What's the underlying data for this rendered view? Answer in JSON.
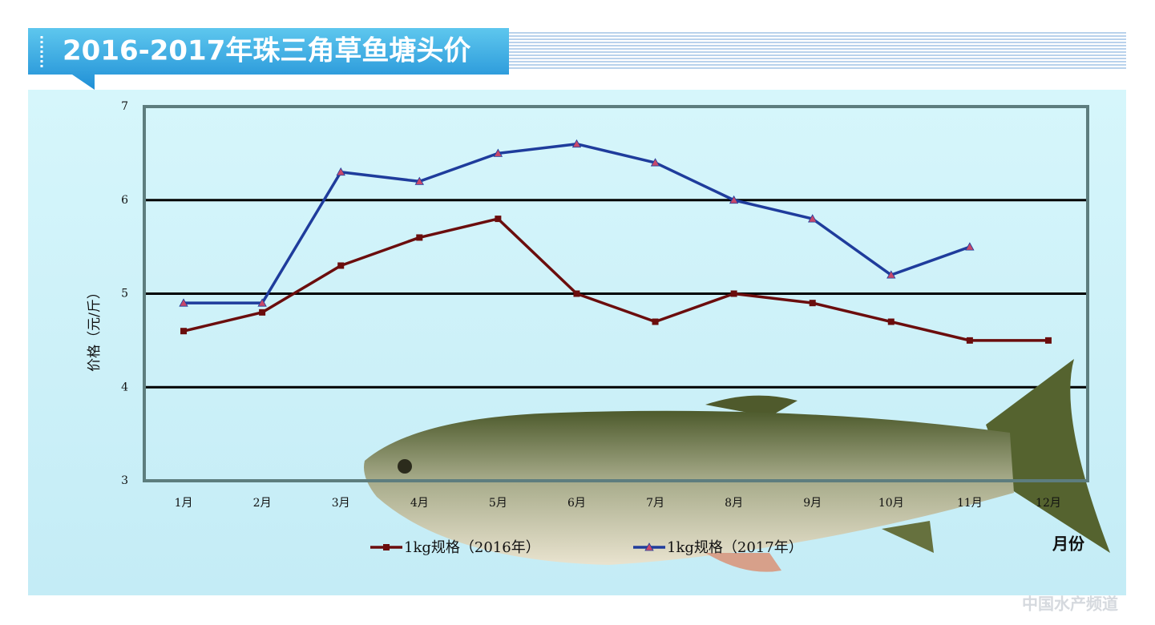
{
  "chart_data": {
    "type": "line",
    "title": "2016-2017年珠三角草鱼塘头价",
    "y_label": "价格（元/斤）",
    "x_label": "月份",
    "watermark": "中国水产频道",
    "categories": [
      "1月",
      "2月",
      "3月",
      "4月",
      "5月",
      "6月",
      "7月",
      "8月",
      "9月",
      "10月",
      "11月",
      "12月"
    ],
    "series": [
      {
        "name": "1kg规格（2016年）",
        "color": "#6b0d0d",
        "marker": "square",
        "values": [
          4.6,
          4.8,
          5.3,
          5.6,
          5.8,
          5.0,
          4.7,
          5.0,
          4.9,
          4.7,
          4.5,
          4.5
        ]
      },
      {
        "name": "1kg规格（2017年）",
        "color": "#1f3c9c",
        "marker": "triangle",
        "values": [
          4.9,
          4.9,
          6.3,
          6.2,
          6.5,
          6.6,
          6.4,
          6.0,
          5.8,
          5.2,
          5.5,
          null
        ]
      }
    ],
    "ylim": [
      3,
      7
    ],
    "yticks": [
      3,
      4,
      5,
      6,
      7
    ],
    "grid": true
  }
}
